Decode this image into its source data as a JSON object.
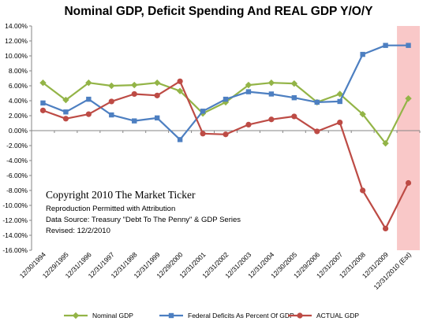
{
  "chart_data": {
    "type": "line",
    "title": "Nominal GDP, Deficit Spending And REAL GDP Y/O/Y",
    "categories": [
      "12/30/1994",
      "12/29/1995",
      "12/31/1996",
      "12/31/1997",
      "12/31/1998",
      "12/31/1999",
      "12/29/2000",
      "12/31/2001",
      "12/31/2002",
      "12/31/2003",
      "12/31/2004",
      "12/30/2005",
      "12/29/2006",
      "12/31/2007",
      "12/31/2008",
      "12/31/2009",
      "12/31/2010 (Est)"
    ],
    "y_ticks": [
      "14.00%",
      "12.00%",
      "10.00%",
      "8.00%",
      "6.00%",
      "4.00%",
      "2.00%",
      "0.00%",
      "-2.00%",
      "-4.00%",
      "-6.00%",
      "-8.00%",
      "-10.00%",
      "-12.00%",
      "-14.00%",
      "-16.00%"
    ],
    "ylim": [
      -16,
      14
    ],
    "grid": false,
    "legend_position": "bottom",
    "highlight_category": "12/31/2010 (Est)",
    "highlight_color": "#f9c8c8",
    "series": [
      {
        "name": "Nominal GDP",
        "color": "#93b447",
        "marker": "diamond",
        "values": [
          6.4,
          4.1,
          6.4,
          6.0,
          6.1,
          6.4,
          5.3,
          2.3,
          3.8,
          6.1,
          6.4,
          6.3,
          3.8,
          4.9,
          2.2,
          -1.7,
          4.3
        ]
      },
      {
        "name": "Federal Deficits As Percent Of GDP",
        "color": "#4d7fc1",
        "marker": "square",
        "values": [
          3.7,
          2.5,
          4.2,
          2.1,
          1.3,
          1.7,
          -1.2,
          2.6,
          4.2,
          5.2,
          4.9,
          4.4,
          3.8,
          3.9,
          10.2,
          11.4,
          11.4
        ]
      },
      {
        "name": "ACTUAL GDP",
        "color": "#bd4b45",
        "marker": "circle",
        "values": [
          2.7,
          1.6,
          2.2,
          3.9,
          4.9,
          4.7,
          6.6,
          -0.4,
          -0.5,
          0.8,
          1.5,
          1.9,
          -0.1,
          1.1,
          -8.0,
          -13.1,
          -7.0
        ]
      }
    ],
    "annotations": {
      "copyright": "Copyright 2010 The Market Ticker",
      "lines": [
        "Reproduction Permitted with Attribution",
        "Data Source:  Treasury \"Debt To The Penny\" & GDP Series",
        "Revised: 12/2/2010"
      ]
    }
  }
}
